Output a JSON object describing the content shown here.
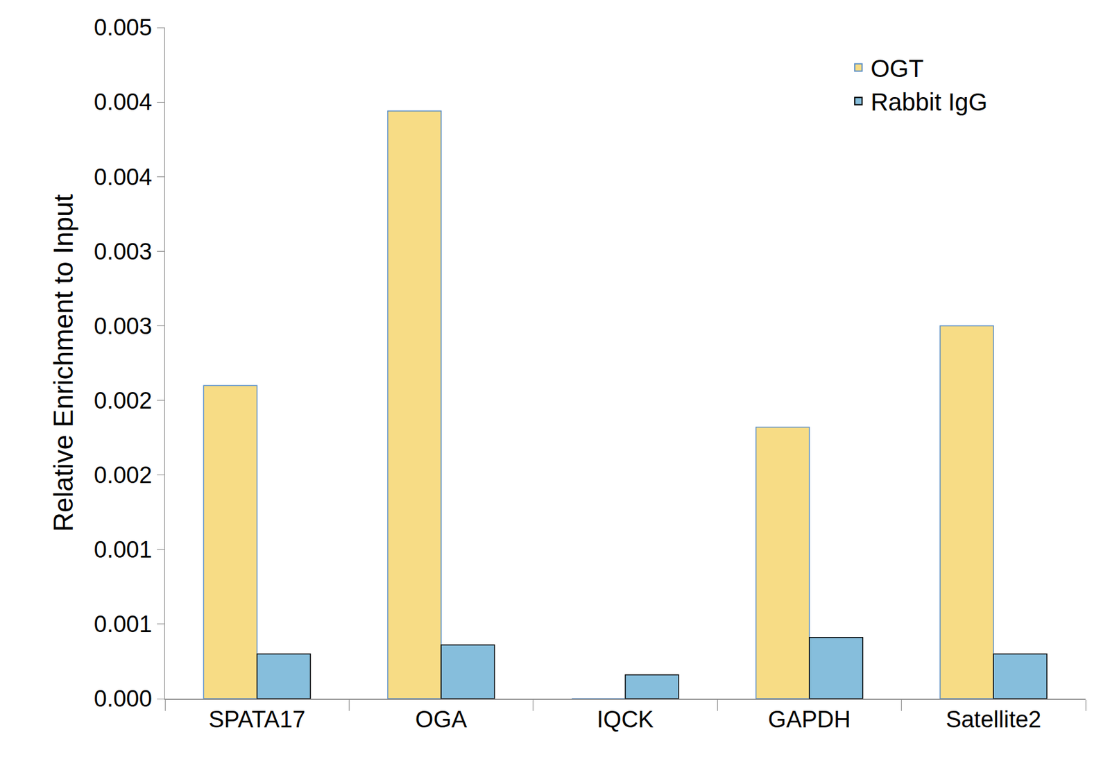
{
  "chart_data": {
    "type": "bar",
    "y_label": "Relative Enrichment to Input",
    "categories": [
      "SPATA17",
      "OGA",
      "IQCK",
      "GAPDH",
      "Satellite2"
    ],
    "series": [
      {
        "name": "OGT",
        "color": "#f7dc85",
        "values": [
          0.0021,
          0.00394,
          0,
          0.00182,
          0.0025
        ]
      },
      {
        "name": "Rabbit IgG",
        "color": "#86bedc",
        "values": [
          0.0003,
          0.00036,
          0.00016,
          0.00041,
          0.0003
        ]
      }
    ],
    "ylim": [
      0,
      0.0045
    ],
    "yticks": [
      {
        "value": 0,
        "label": "0.000"
      },
      {
        "value": 0.0005,
        "label": "0.001"
      },
      0.001,
      {
        "value": 0.0015,
        "label": "0.002"
      },
      0.002,
      {
        "value": 0.0025,
        "label": "0.003"
      },
      0.003,
      {
        "value": 0.0035,
        "label": "0.004"
      },
      0.004,
      {
        "value": 0.0045,
        "label": "0.005"
      }
    ],
    "grid": false,
    "legend": "top right"
  }
}
